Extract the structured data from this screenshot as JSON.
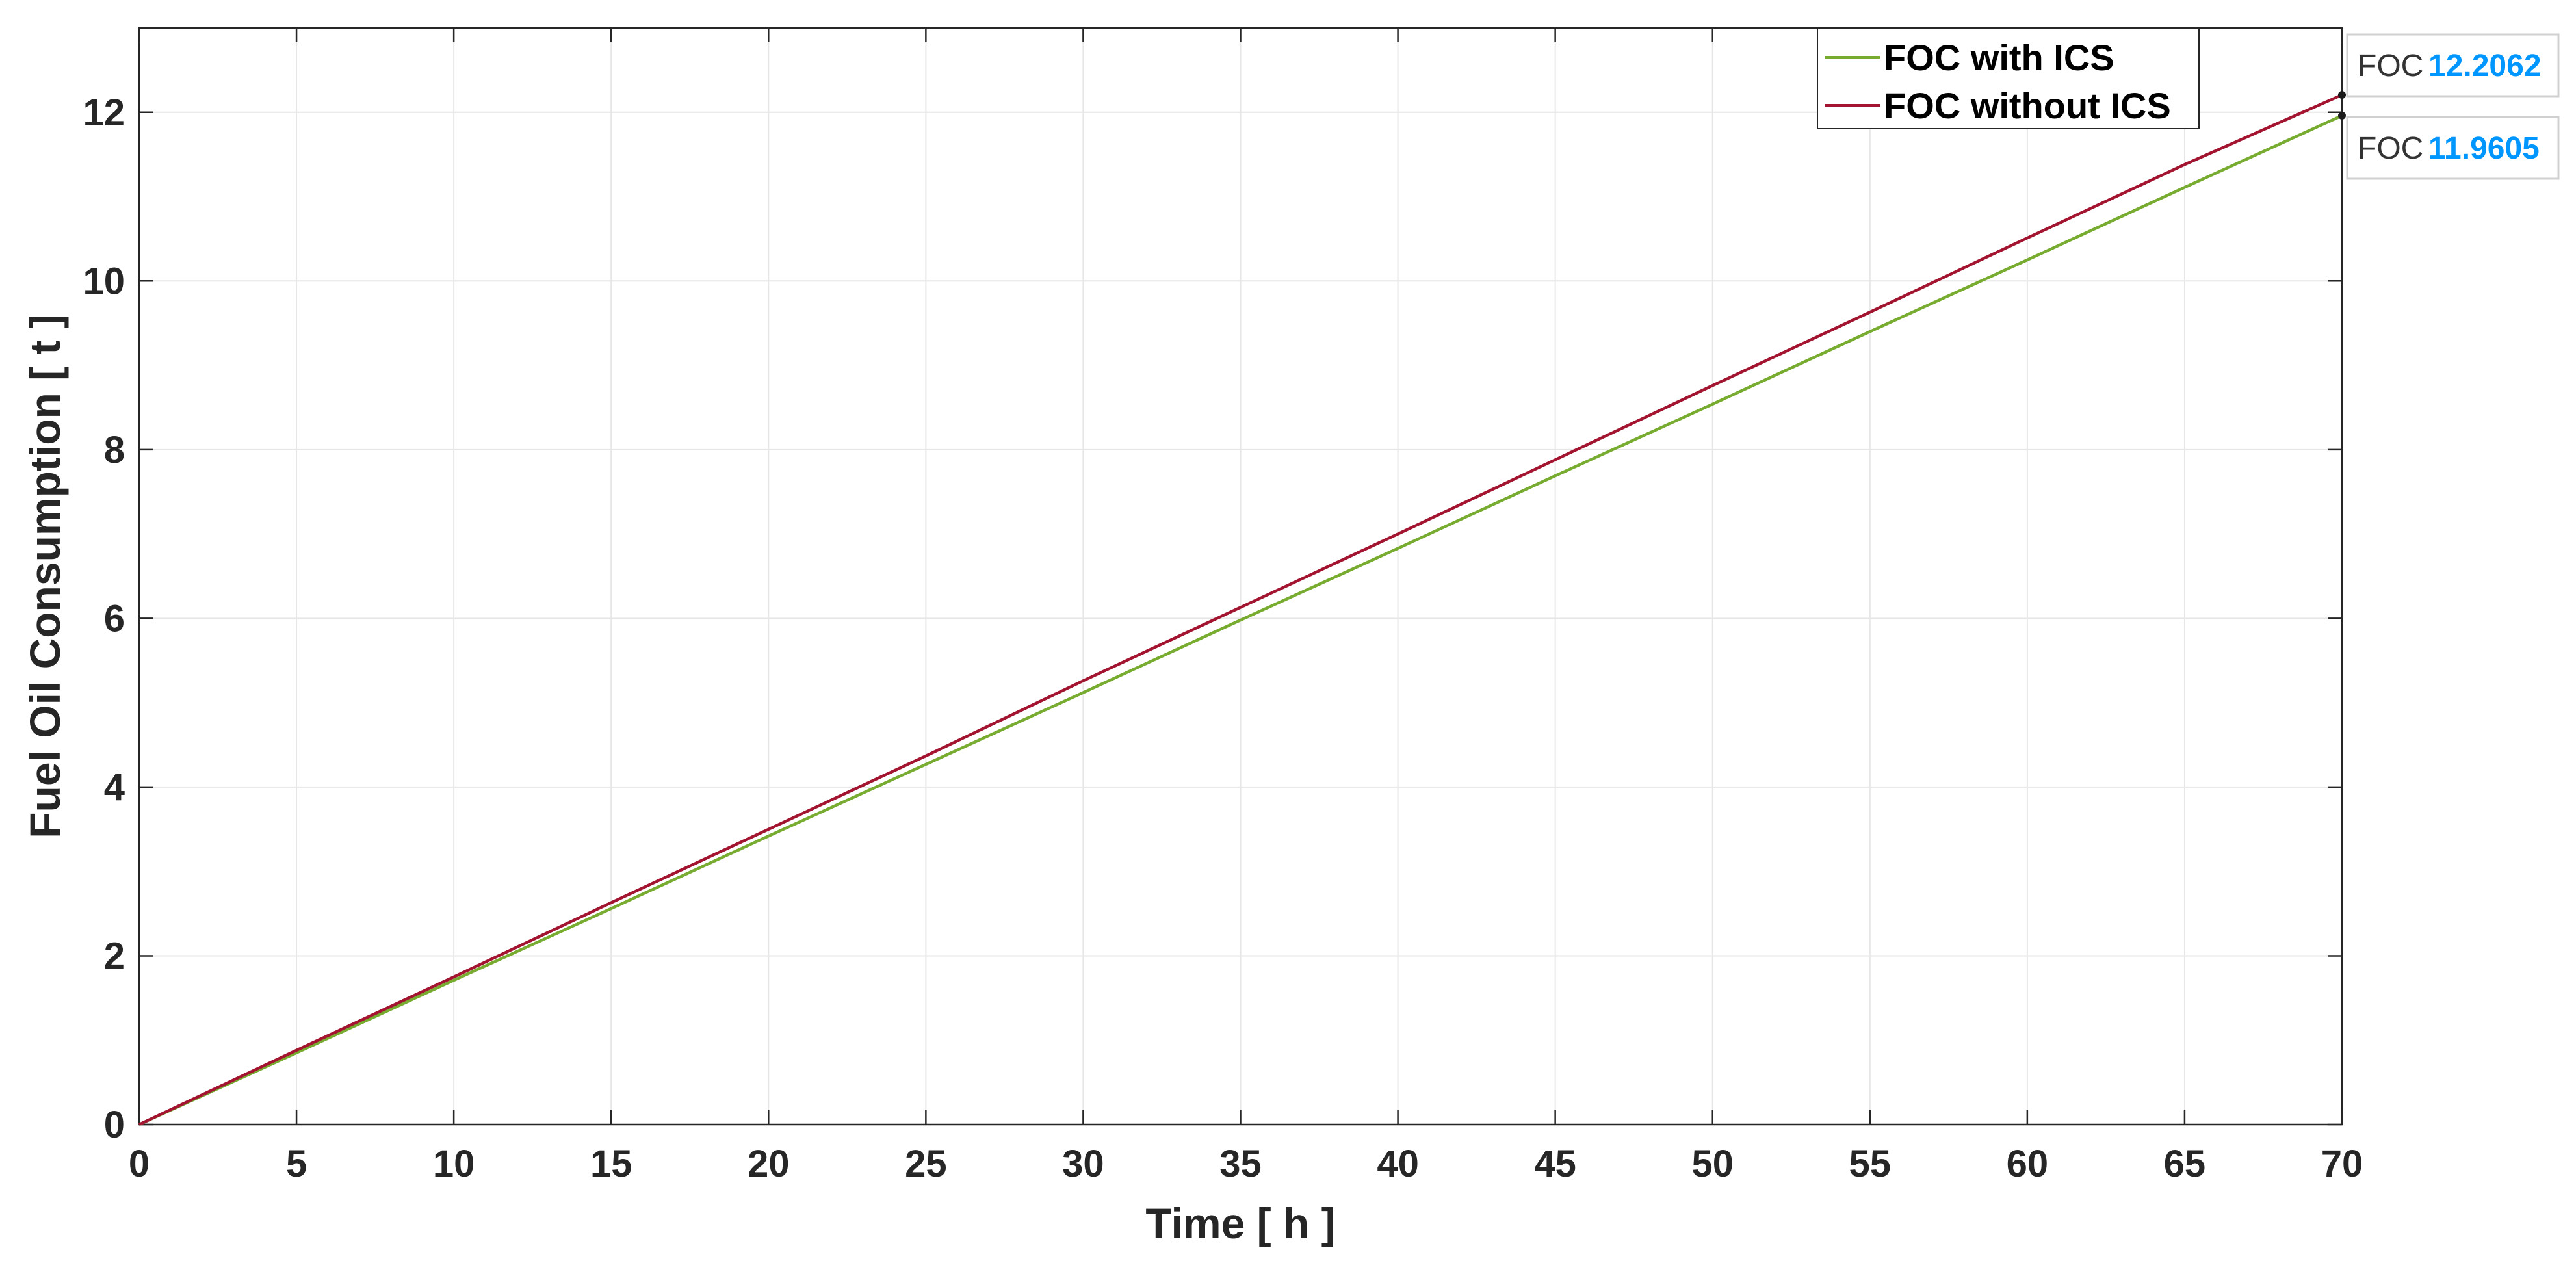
{
  "chart_data": {
    "type": "line",
    "xlabel": "Time [ h ]",
    "ylabel": "Fuel Oil Consumption [ t ]",
    "xlim": [
      0,
      70
    ],
    "ylim": [
      0,
      13
    ],
    "xticks": [
      0,
      5,
      10,
      15,
      20,
      25,
      30,
      35,
      40,
      45,
      50,
      55,
      60,
      65,
      70
    ],
    "yticks": [
      0,
      2,
      4,
      6,
      8,
      10,
      12
    ],
    "grid": true,
    "legend_position": "top-right",
    "series": [
      {
        "name": "FOC with ICS",
        "color": "#77AC30",
        "x": [
          0,
          5,
          10,
          15,
          20,
          25,
          30,
          35,
          40,
          45,
          50,
          55,
          60,
          65,
          70
        ],
        "values": [
          0,
          0.85,
          1.71,
          2.56,
          3.42,
          4.27,
          5.12,
          5.98,
          6.83,
          7.69,
          8.54,
          9.4,
          10.25,
          11.11,
          11.9605
        ]
      },
      {
        "name": "FOC without ICS",
        "color": "#A2142F",
        "x": [
          0,
          5,
          10,
          15,
          20,
          25,
          30,
          35,
          40,
          45,
          50,
          55,
          60,
          65,
          70
        ],
        "values": [
          0,
          0.88,
          1.75,
          2.63,
          3.5,
          4.37,
          5.26,
          6.13,
          7.0,
          7.88,
          8.76,
          9.63,
          10.51,
          11.38,
          12.2062
        ]
      }
    ],
    "datatips": [
      {
        "label": "FOC",
        "value": "12.2062",
        "x": 70,
        "y": 12.2062
      },
      {
        "label": "FOC",
        "value": "11.9605",
        "x": 70,
        "y": 11.9605
      }
    ],
    "datatip_value_color": "#0096FF"
  }
}
